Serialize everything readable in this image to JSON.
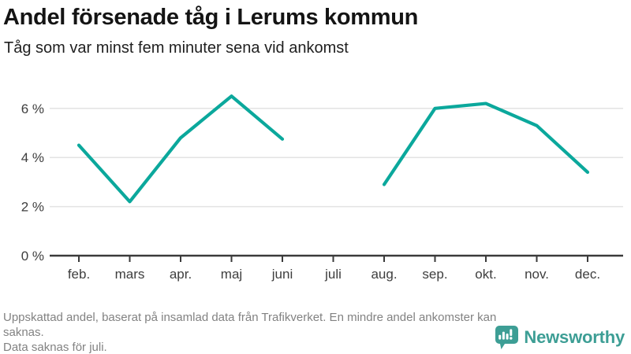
{
  "header": {
    "title": "Andel försenade tåg i Lerums kommun",
    "subtitle": "Tåg som var minst fem minuter sena vid ankomst"
  },
  "chart_data": {
    "type": "line",
    "title": "Andel försenade tåg i Lerums kommun",
    "subtitle": "Tåg som var minst fem minuter sena vid ankomst",
    "categories": [
      "feb.",
      "mars",
      "apr.",
      "maj",
      "juni",
      "juli",
      "aug.",
      "sep.",
      "okt.",
      "nov.",
      "dec."
    ],
    "values": [
      4.5,
      2.2,
      4.8,
      6.5,
      4.75,
      null,
      2.9,
      6.0,
      6.2,
      5.3,
      3.4
    ],
    "unit": "%",
    "ylim": [
      0,
      7
    ],
    "yticks": [
      0,
      2,
      4,
      6
    ],
    "ytick_labels": [
      "0 %",
      "2 %",
      "4 %",
      "6 %"
    ],
    "grid": true,
    "legend": "none",
    "gap_months": [
      "juli"
    ]
  },
  "footer": {
    "note1": "Uppskattad andel, baserat på insamlad data från Trafikverket. En mindre andel ankomster kan saknas.",
    "note2": "Data saknas för juli.",
    "brand": "Newsworthy"
  },
  "colors": {
    "line": "#0ba89c",
    "grid": "#e3e3e3",
    "axis": "#3a3a3a",
    "axis_text": "#3e3e3e",
    "title_text": "#141414",
    "note_text": "#828282",
    "brand_teal": "#3d9e95"
  }
}
